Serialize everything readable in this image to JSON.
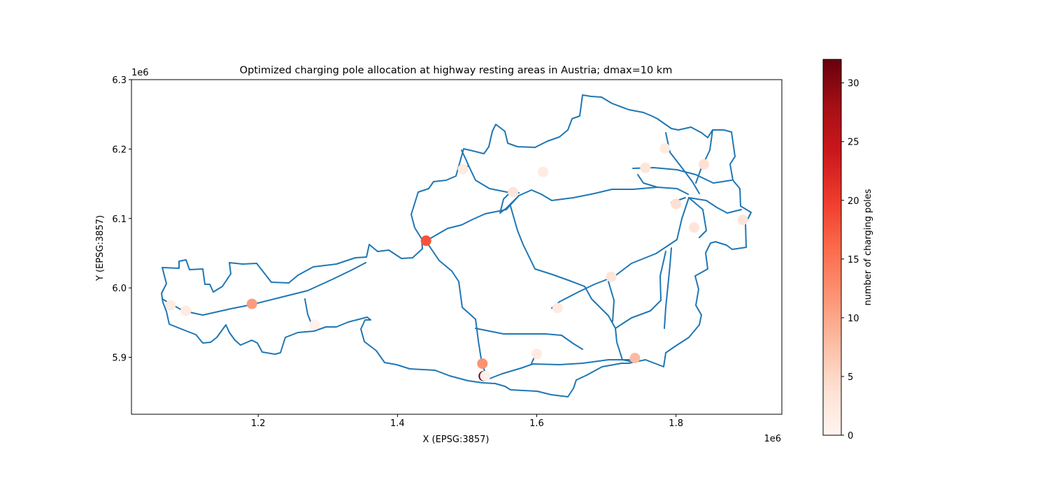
{
  "chart_data": {
    "type": "map",
    "title": "Optimized charging pole allocation at highway resting areas in Austria; dmax=10 km",
    "xlabel": "X (EPSG:3857)",
    "ylabel": "Y (EPSG:3857)",
    "x_offset_label": "1e6",
    "y_offset_label": "1e6",
    "xlim": [
      1.018,
      1.952
    ],
    "ylim": [
      5.818,
      6.3
    ],
    "x_ticks": [
      1.2,
      1.4,
      1.6,
      1.8
    ],
    "y_ticks": [
      5.9,
      6.0,
      6.1,
      6.2,
      6.3
    ],
    "x_tick_labels": [
      "1.2",
      "1.4",
      "1.6",
      "1.8"
    ],
    "y_tick_labels": [
      "5.9",
      "6.0",
      "6.1",
      "6.2",
      "6.3"
    ],
    "grid": false,
    "colorbar": {
      "label": "number of charging poles",
      "min": 0,
      "max": 32,
      "ticks": [
        0,
        5,
        10,
        15,
        20,
        25,
        30
      ],
      "tick_labels": [
        "0",
        "5",
        "10",
        "15",
        "20",
        "25",
        "30"
      ],
      "colormap": "Reds"
    },
    "colors": {
      "network": "#1f77b4",
      "axes": "#000000"
    },
    "points": [
      {
        "x": 1.441,
        "y": 6.068,
        "value": 18
      },
      {
        "x": 1.191,
        "y": 5.977,
        "value": 11
      },
      {
        "x": 1.522,
        "y": 5.891,
        "value": 12
      },
      {
        "x": 1.524,
        "y": 5.873,
        "value": 32
      },
      {
        "x": 1.741,
        "y": 5.899,
        "value": 8
      },
      {
        "x": 1.074,
        "y": 5.975,
        "value": 2
      },
      {
        "x": 1.096,
        "y": 5.967,
        "value": 2
      },
      {
        "x": 1.281,
        "y": 5.947,
        "value": 1
      },
      {
        "x": 1.494,
        "y": 6.171,
        "value": 2
      },
      {
        "x": 1.566,
        "y": 6.138,
        "value": 3
      },
      {
        "x": 1.609,
        "y": 6.167,
        "value": 2
      },
      {
        "x": 1.6,
        "y": 5.905,
        "value": 2
      },
      {
        "x": 1.63,
        "y": 5.971,
        "value": 2
      },
      {
        "x": 1.707,
        "y": 6.016,
        "value": 3
      },
      {
        "x": 1.784,
        "y": 6.201,
        "value": 2
      },
      {
        "x": 1.756,
        "y": 6.173,
        "value": 3
      },
      {
        "x": 1.8,
        "y": 6.121,
        "value": 4
      },
      {
        "x": 1.84,
        "y": 6.178,
        "value": 4
      },
      {
        "x": 1.826,
        "y": 6.087,
        "value": 3
      },
      {
        "x": 1.896,
        "y": 6.098,
        "value": 3
      },
      {
        "x": 1.526,
        "y": 5.873,
        "value": 1
      }
    ]
  }
}
